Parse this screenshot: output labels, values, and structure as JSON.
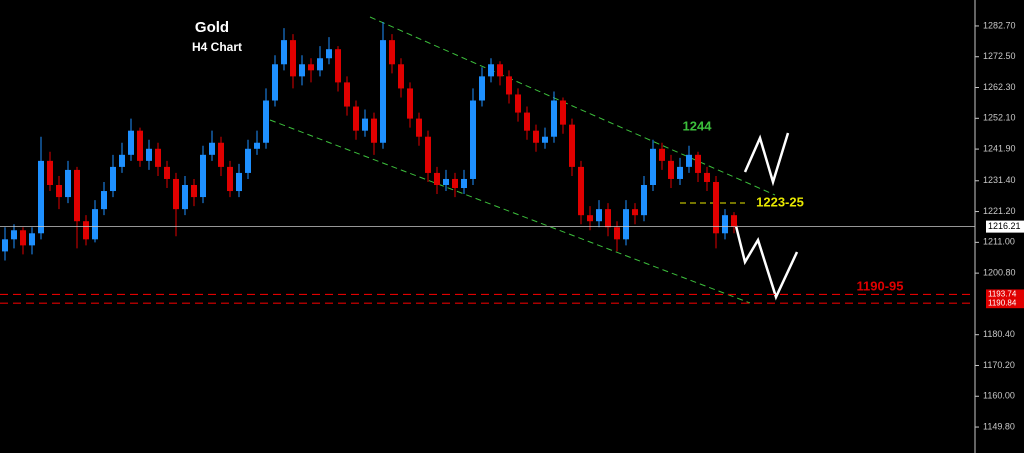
{
  "chart_data": {
    "type": "candlestick",
    "title": "Gold",
    "subtitle": "H4 Chart",
    "up_color": "#1e90ff",
    "down_color": "#e00000",
    "ohlc": [
      [
        1208,
        1216,
        1205,
        1212
      ],
      [
        1212,
        1217,
        1209,
        1215
      ],
      [
        1215,
        1216,
        1207,
        1210
      ],
      [
        1210,
        1216,
        1207,
        1214
      ],
      [
        1214,
        1246,
        1212,
        1238
      ],
      [
        1238,
        1241,
        1228,
        1230
      ],
      [
        1230,
        1233,
        1222,
        1226
      ],
      [
        1226,
        1238,
        1224,
        1235
      ],
      [
        1235,
        1236,
        1209,
        1218
      ],
      [
        1218,
        1220,
        1210,
        1212
      ],
      [
        1212,
        1225,
        1211,
        1222
      ],
      [
        1222,
        1231,
        1220,
        1228
      ],
      [
        1228,
        1240,
        1226,
        1236
      ],
      [
        1236,
        1244,
        1234,
        1240
      ],
      [
        1240,
        1252,
        1238,
        1248
      ],
      [
        1248,
        1249,
        1236,
        1238
      ],
      [
        1238,
        1245,
        1235,
        1242
      ],
      [
        1242,
        1244,
        1233,
        1236
      ],
      [
        1236,
        1238,
        1229,
        1232
      ],
      [
        1232,
        1234,
        1213,
        1222
      ],
      [
        1222,
        1233,
        1220,
        1230
      ],
      [
        1230,
        1232,
        1223,
        1226
      ],
      [
        1226,
        1243,
        1224,
        1240
      ],
      [
        1240,
        1248,
        1238,
        1244
      ],
      [
        1244,
        1246,
        1233,
        1236
      ],
      [
        1236,
        1238,
        1226,
        1228
      ],
      [
        1228,
        1237,
        1226,
        1234
      ],
      [
        1234,
        1245,
        1232,
        1242
      ],
      [
        1242,
        1248,
        1240,
        1244
      ],
      [
        1244,
        1262,
        1242,
        1258
      ],
      [
        1258,
        1273,
        1256,
        1270
      ],
      [
        1270,
        1282,
        1268,
        1278
      ],
      [
        1278,
        1280,
        1262,
        1266
      ],
      [
        1266,
        1273,
        1263,
        1270
      ],
      [
        1270,
        1272,
        1264,
        1268
      ],
      [
        1268,
        1276,
        1266,
        1272
      ],
      [
        1272,
        1279,
        1270,
        1275
      ],
      [
        1275,
        1276,
        1261,
        1264
      ],
      [
        1264,
        1266,
        1253,
        1256
      ],
      [
        1256,
        1258,
        1245,
        1248
      ],
      [
        1248,
        1255,
        1246,
        1252
      ],
      [
        1252,
        1254,
        1240,
        1244
      ],
      [
        1244,
        1284,
        1242,
        1278
      ],
      [
        1278,
        1280,
        1267,
        1270
      ],
      [
        1270,
        1272,
        1259,
        1262
      ],
      [
        1262,
        1264,
        1249,
        1252
      ],
      [
        1252,
        1254,
        1243,
        1246
      ],
      [
        1246,
        1248,
        1231,
        1234
      ],
      [
        1234,
        1236,
        1227,
        1230
      ],
      [
        1230,
        1235,
        1228,
        1232
      ],
      [
        1232,
        1234,
        1226,
        1229
      ],
      [
        1229,
        1235,
        1227,
        1232
      ],
      [
        1232,
        1262,
        1230,
        1258
      ],
      [
        1258,
        1269,
        1256,
        1266
      ],
      [
        1266,
        1272,
        1264,
        1270
      ],
      [
        1270,
        1271,
        1263,
        1266
      ],
      [
        1266,
        1268,
        1257,
        1260
      ],
      [
        1260,
        1262,
        1251,
        1254
      ],
      [
        1254,
        1256,
        1245,
        1248
      ],
      [
        1248,
        1250,
        1241,
        1244
      ],
      [
        1244,
        1249,
        1242,
        1246
      ],
      [
        1246,
        1261,
        1244,
        1258
      ],
      [
        1258,
        1259,
        1247,
        1250
      ],
      [
        1250,
        1252,
        1233,
        1236
      ],
      [
        1236,
        1238,
        1217,
        1220
      ],
      [
        1220,
        1223,
        1215,
        1218
      ],
      [
        1218,
        1225,
        1216,
        1222
      ],
      [
        1222,
        1224,
        1213,
        1216
      ],
      [
        1216,
        1218,
        1208,
        1212
      ],
      [
        1212,
        1225,
        1210,
        1222
      ],
      [
        1222,
        1224,
        1217,
        1220
      ],
      [
        1220,
        1233,
        1218,
        1230
      ],
      [
        1230,
        1245,
        1228,
        1242
      ],
      [
        1242,
        1244,
        1235,
        1238
      ],
      [
        1238,
        1240,
        1229,
        1232
      ],
      [
        1232,
        1239,
        1230,
        1236
      ],
      [
        1236,
        1243,
        1234,
        1240
      ],
      [
        1240,
        1241,
        1231,
        1234
      ],
      [
        1234,
        1236,
        1228,
        1231
      ],
      [
        1231,
        1233,
        1209,
        1214
      ],
      [
        1214,
        1222,
        1212,
        1220
      ],
      [
        1220,
        1221,
        1214,
        1216.21
      ]
    ],
    "ylim": [
      1141.2,
      1291.3
    ],
    "yticks": [
      {
        "value": 1282.7,
        "label": "1282.70"
      },
      {
        "value": 1272.5,
        "label": "1272.50"
      },
      {
        "value": 1262.3,
        "label": "1262.30"
      },
      {
        "value": 1252.1,
        "label": "1252.10"
      },
      {
        "value": 1241.9,
        "label": "1241.90"
      },
      {
        "value": 1231.4,
        "label": "1231.40"
      },
      {
        "value": 1221.2,
        "label": "1221.20"
      },
      {
        "value": 1211,
        "label": "1211.00"
      },
      {
        "value": 1200.8,
        "label": "1200.80"
      },
      {
        "value": 1180.4,
        "label": "1180.40"
      },
      {
        "value": 1170.2,
        "label": "1170.20"
      },
      {
        "value": 1160,
        "label": "1160.00"
      },
      {
        "value": 1149.8,
        "label": "1149.80"
      }
    ],
    "current_price": 1216.21,
    "levels": [
      1193.74,
      1190.84
    ],
    "annotations": [
      "1244",
      "1223-25",
      "1190-95"
    ]
  }
}
